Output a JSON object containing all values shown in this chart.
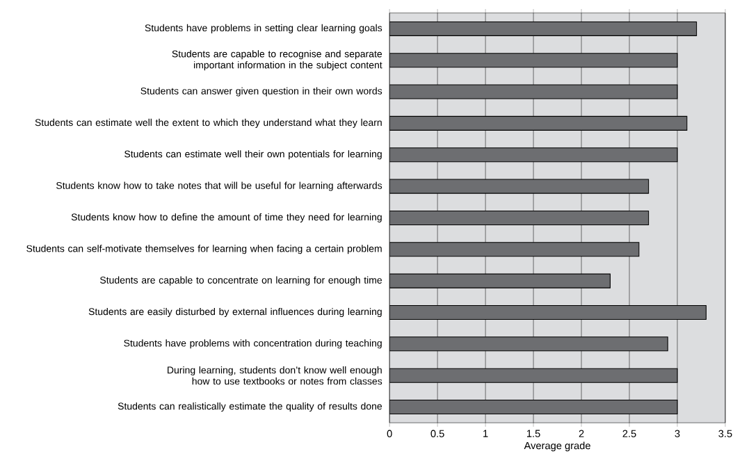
{
  "chart_data": {
    "type": "bar",
    "orientation": "horizontal",
    "xlabel": "Average grade",
    "categories": [
      "Students have problems in setting clear learning goals",
      "Students are capable to recognise and separate important information in the subject content",
      "Students can answer given question in their own words",
      "Students can estimate well the extent to which they understand what they learn",
      "Students can estimate well their own potentials for learning",
      "Students know how to take notes that will be useful for learning afterwards",
      "Students know how to define the amount of time they need for learning",
      "Students can self-motivate themselves for learning when facing a certain problem",
      "Students are capable to concentrate on learning for enough time",
      "Students are easily disturbed by external influences during learning",
      "Students have problems with concentration during teaching",
      "During learning, students don’t know well enough how to use textbooks or notes from classes",
      "Students can realistically estimate the quality of results done"
    ],
    "values": [
      3.2,
      3.0,
      3.0,
      3.1,
      3.0,
      2.7,
      2.7,
      2.6,
      2.3,
      3.3,
      2.9,
      3.0,
      3.0
    ],
    "color": "#6d6e71",
    "xlim": [
      0,
      3.5
    ],
    "xticks": [
      0,
      0.5,
      1,
      1.5,
      2,
      2.5,
      3,
      3.5
    ],
    "grid": "x"
  }
}
